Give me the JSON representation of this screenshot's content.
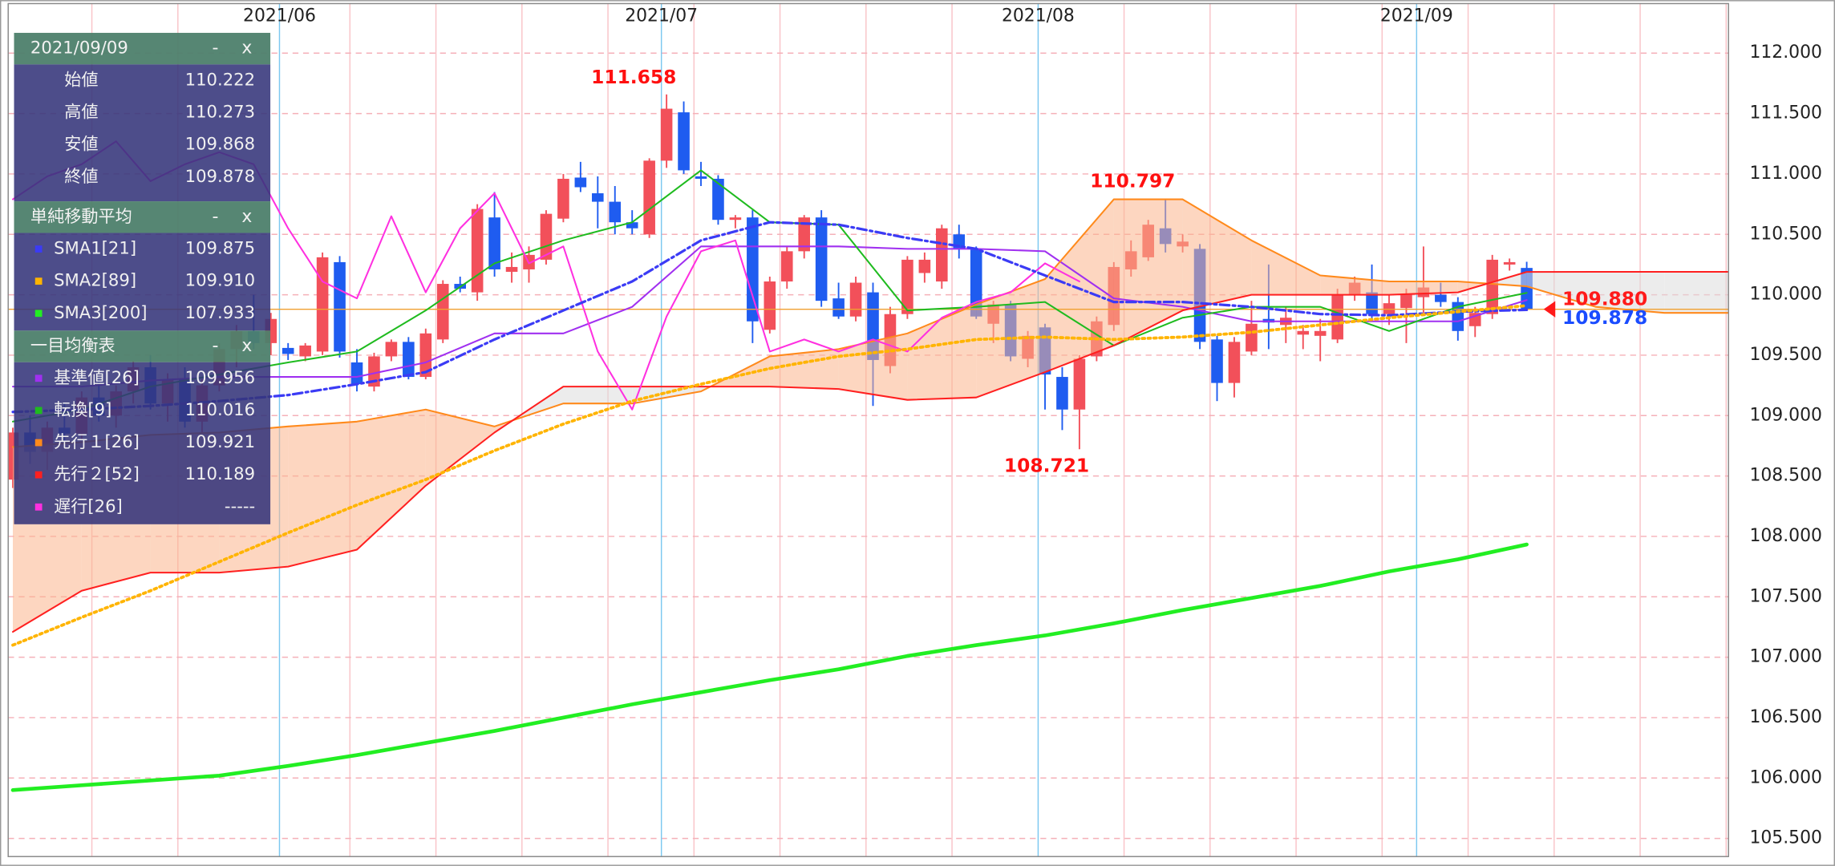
{
  "chart_data": {
    "type": "candlestick",
    "xlim": [
      -0.27,
      99.73
    ],
    "xticks": [
      {
        "value": 15.5,
        "label": "2021/06"
      },
      {
        "value": 37.7,
        "label": "2021/07"
      },
      {
        "value": 59.6,
        "label": "2021/08"
      },
      {
        "value": 81.6,
        "label": "2021/09"
      }
    ],
    "ylim": [
      105.35,
      112.41
    ],
    "yticks": [
      {
        "value": 105.5,
        "label": "105.500"
      },
      {
        "value": 106,
        "label": "106.000"
      },
      {
        "value": 106.5,
        "label": "106.500"
      },
      {
        "value": 107,
        "label": "107.000"
      },
      {
        "value": 107.5,
        "label": "107.500"
      },
      {
        "value": 108,
        "label": "108.000"
      },
      {
        "value": 108.5,
        "label": "108.500"
      },
      {
        "value": 109,
        "label": "109.000"
      },
      {
        "value": 109.5,
        "label": "109.500"
      },
      {
        "value": 110,
        "label": "110.000"
      },
      {
        "value": 110.5,
        "label": "110.500"
      },
      {
        "value": 111,
        "label": "111.000"
      },
      {
        "value": 111.5,
        "label": "111.500"
      },
      {
        "value": 112,
        "label": "112.000"
      }
    ],
    "grid": true,
    "up_color": "#f2505a",
    "down_color": "#1f5cf0",
    "open": [
      108.47,
      108.86,
      108.7,
      108.9,
      108.85,
      109.15,
      109.0,
      109.2,
      109.4,
      109.1,
      109.3,
      108.95,
      109.25,
      109.55,
      109.7,
      109.6,
      109.56,
      109.49,
      109.53,
      110.27,
      109.44,
      109.24,
      109.49,
      109.61,
      109.32,
      109.63,
      110.09,
      110.02,
      110.64,
      110.19,
      110.21,
      110.29,
      110.63,
      110.97,
      110.84,
      110.77,
      110.6,
      110.5,
      111.11,
      111.51,
      110.98,
      110.96,
      110.62,
      110.64,
      109.71,
      110.11,
      110.36,
      110.64,
      109.97,
      109.82,
      110.02,
      109.41,
      109.84,
      110.18,
      110.11,
      110.5,
      110.38,
      109.76,
      109.92,
      109.47,
      109.73,
      109.32,
      109.05,
      109.49,
      109.75,
      110.21,
      110.31,
      110.55,
      110.4,
      110.38,
      109.63,
      109.27,
      109.53,
      109.8,
      109.75,
      109.67,
      109.66,
      109.63,
      110.0,
      110.02,
      109.84,
      109.89,
      109.98,
      110.0,
      109.94,
      109.74,
      109.84,
      110.25,
      110.222
    ],
    "high": [
      108.9,
      109.0,
      108.95,
      109.1,
      109.2,
      109.3,
      109.25,
      109.45,
      109.5,
      109.35,
      109.4,
      109.3,
      109.6,
      109.75,
      110.0,
      109.85,
      109.6,
      109.6,
      110.35,
      110.32,
      109.55,
      109.52,
      109.63,
      109.65,
      109.72,
      110.12,
      110.15,
      110.75,
      110.85,
      110.35,
      110.4,
      110.7,
      111.0,
      111.1,
      110.98,
      110.9,
      110.7,
      111.13,
      111.658,
      111.6,
      111.1,
      110.99,
      110.66,
      110.7,
      110.15,
      110.4,
      110.66,
      110.7,
      110.1,
      110.15,
      110.1,
      109.9,
      110.32,
      110.35,
      110.58,
      110.58,
      110.4,
      109.95,
      109.95,
      109.7,
      109.76,
      109.4,
      109.5,
      109.82,
      110.27,
      110.45,
      110.62,
      110.797,
      110.5,
      110.42,
      109.66,
      109.65,
      109.95,
      110.25,
      109.9,
      109.75,
      109.8,
      110.05,
      110.15,
      110.25,
      110.0,
      110.05,
      110.4,
      110.1,
      109.98,
      109.9,
      110.33,
      110.3,
      110.273
    ],
    "low": [
      108.4,
      108.6,
      108.55,
      108.75,
      108.8,
      108.95,
      108.9,
      109.1,
      109.05,
      108.95,
      108.9,
      108.85,
      109.2,
      109.4,
      109.55,
      109.5,
      109.46,
      109.45,
      109.5,
      109.48,
      109.2,
      109.2,
      109.45,
      109.3,
      109.3,
      109.6,
      110.02,
      109.95,
      110.15,
      110.1,
      110.1,
      110.25,
      110.6,
      110.85,
      110.55,
      110.5,
      110.5,
      110.47,
      111.05,
      111.0,
      110.9,
      110.58,
      110.55,
      109.6,
      109.68,
      110.05,
      110.3,
      109.9,
      109.8,
      109.78,
      109.08,
      109.35,
      109.8,
      110.1,
      110.05,
      110.3,
      109.8,
      109.6,
      109.45,
      109.4,
      109.05,
      108.88,
      108.721,
      109.45,
      109.7,
      110.15,
      110.28,
      110.35,
      110.35,
      109.55,
      109.12,
      109.15,
      109.5,
      109.55,
      109.6,
      109.55,
      109.45,
      109.6,
      109.95,
      109.8,
      109.75,
      109.6,
      109.85,
      109.9,
      109.62,
      109.65,
      109.8,
      110.2,
      109.868
    ],
    "close": [
      108.86,
      108.7,
      108.9,
      108.85,
      109.15,
      109.0,
      109.2,
      109.4,
      109.1,
      109.3,
      108.95,
      109.25,
      109.55,
      109.7,
      109.6,
      109.8,
      109.51,
      109.58,
      110.31,
      109.53,
      109.26,
      109.49,
      109.61,
      109.32,
      109.68,
      110.09,
      110.05,
      110.71,
      110.21,
      110.23,
      110.33,
      110.67,
      110.96,
      110.89,
      110.77,
      110.6,
      110.55,
      111.11,
      111.54,
      111.03,
      110.96,
      110.62,
      110.64,
      109.78,
      110.11,
      110.36,
      110.64,
      109.95,
      109.82,
      110.1,
      109.46,
      109.84,
      110.29,
      110.29,
      110.55,
      110.38,
      109.82,
      109.92,
      109.49,
      109.66,
      109.34,
      109.05,
      109.47,
      109.78,
      110.23,
      110.36,
      110.58,
      110.42,
      110.44,
      109.61,
      109.27,
      109.61,
      109.76,
      109.77,
      109.81,
      109.7,
      109.7,
      110.0,
      110.1,
      109.84,
      109.93,
      110.0,
      110.06,
      109.94,
      109.7,
      109.85,
      110.29,
      110.27,
      109.878
    ],
    "annotations": [
      {
        "x": 38,
        "value": 111.658
      },
      {
        "x": 67,
        "value": 110.797
      },
      {
        "x": 62,
        "value": 108.721
      }
    ],
    "annotation_color": "#ff1010",
    "sma": [
      {
        "name": "SMA1[21]",
        "color": "#3b3bf5",
        "line_style": "dashdot",
        "width": 2.2,
        "last": "109.875",
        "x": [
          0,
          4,
          8,
          12,
          16,
          20,
          24,
          28,
          32,
          36,
          40,
          44,
          48,
          52,
          56,
          60,
          64,
          68,
          72,
          76,
          80,
          84,
          88
        ],
        "values": [
          109.03,
          109.05,
          109.08,
          109.12,
          109.17,
          109.26,
          109.36,
          109.63,
          109.87,
          110.11,
          110.45,
          110.6,
          110.58,
          110.47,
          110.38,
          110.16,
          109.94,
          109.94,
          109.9,
          109.84,
          109.83,
          109.86,
          109.875
        ]
      },
      {
        "name": "SMA2[89]",
        "color": "#ffb400",
        "line_style": "dotted",
        "width": 2.6,
        "last": "109.910",
        "x": [
          0,
          4,
          8,
          12,
          16,
          20,
          24,
          28,
          32,
          36,
          40,
          44,
          48,
          52,
          56,
          60,
          64,
          68,
          72,
          76,
          80,
          84,
          88
        ],
        "values": [
          107.1,
          107.33,
          107.55,
          107.79,
          108.03,
          108.26,
          108.47,
          108.71,
          108.93,
          109.12,
          109.26,
          109.39,
          109.49,
          109.55,
          109.63,
          109.65,
          109.63,
          109.65,
          109.69,
          109.75,
          109.81,
          109.86,
          109.91
        ]
      },
      {
        "name": "SMA3[200]",
        "color": "#22ee22",
        "line_style": "solid",
        "width": 3.2,
        "last": "107.933",
        "x": [
          0,
          4,
          8,
          12,
          16,
          20,
          24,
          28,
          32,
          36,
          40,
          44,
          48,
          52,
          56,
          60,
          64,
          68,
          72,
          76,
          80,
          84,
          88
        ],
        "values": [
          105.9,
          105.94,
          105.98,
          106.02,
          106.1,
          106.19,
          106.29,
          106.39,
          106.5,
          106.61,
          106.71,
          106.81,
          106.9,
          107.01,
          107.1,
          107.18,
          107.28,
          107.39,
          107.49,
          107.59,
          107.71,
          107.81,
          107.933
        ]
      }
    ],
    "ichimoku": [
      {
        "name": "基準値[26]",
        "color": "#a030f0",
        "line_style": "solid",
        "width": 1.4,
        "last": "109.956",
        "x": [
          0,
          4,
          8,
          12,
          16,
          20,
          24,
          28,
          32,
          36,
          40,
          44,
          48,
          52,
          56,
          60,
          64,
          68,
          72,
          76,
          80,
          84,
          88
        ],
        "values": [
          109.24,
          109.24,
          109.29,
          109.32,
          109.32,
          109.32,
          109.44,
          109.68,
          109.68,
          109.9,
          110.4,
          110.4,
          110.4,
          110.38,
          110.38,
          110.36,
          109.97,
          109.9,
          109.78,
          109.78,
          109.78,
          109.78,
          109.956
        ]
      },
      {
        "name": "転換[9]",
        "color": "#1fbb1f",
        "line_style": "solid",
        "width": 1.4,
        "last": "110.016",
        "x": [
          0,
          4,
          8,
          12,
          16,
          20,
          24,
          28,
          32,
          36,
          40,
          44,
          48,
          52,
          56,
          60,
          64,
          68,
          72,
          76,
          80,
          84,
          88
        ],
        "values": [
          108.95,
          109.05,
          109.24,
          109.34,
          109.44,
          109.53,
          109.87,
          110.26,
          110.45,
          110.6,
          111.03,
          110.6,
          110.58,
          109.87,
          109.9,
          109.94,
          109.58,
          109.81,
          109.9,
          109.9,
          109.7,
          109.9,
          110.016
        ]
      },
      {
        "name": "先行１[26]",
        "color": "#ff8a1c",
        "line_style": "solid",
        "width": 1.4,
        "last": "109.921",
        "x": [
          0,
          4,
          8,
          12,
          16,
          20,
          24,
          28,
          32,
          36,
          40,
          44,
          48,
          52,
          56,
          60,
          64,
          68,
          72,
          76,
          80,
          84,
          88,
          92,
          96,
          100
        ],
        "values": [
          108.74,
          108.78,
          108.84,
          108.86,
          108.91,
          108.95,
          109.05,
          108.91,
          109.1,
          109.1,
          109.2,
          109.49,
          109.55,
          109.68,
          109.92,
          110.13,
          110.79,
          110.79,
          110.45,
          110.16,
          110.11,
          110.11,
          110.07,
          109.9,
          109.85,
          109.85
        ]
      },
      {
        "name": "先行２[52]",
        "color": "#ff2020",
        "line_style": "solid",
        "width": 1.4,
        "last": "110.189",
        "x": [
          0,
          4,
          8,
          12,
          16,
          20,
          24,
          28,
          32,
          36,
          40,
          44,
          48,
          52,
          56,
          60,
          64,
          68,
          72,
          76,
          80,
          84,
          88,
          92,
          96,
          100
        ],
        "values": [
          107.21,
          107.55,
          107.7,
          107.7,
          107.75,
          107.89,
          108.42,
          108.86,
          109.24,
          109.24,
          109.24,
          109.24,
          109.22,
          109.13,
          109.15,
          109.36,
          109.58,
          109.87,
          110.0,
          110.0,
          110.0,
          110.02,
          110.189,
          110.19,
          110.19,
          110.19
        ]
      },
      {
        "name": "遅行[26]",
        "color": "#ff30e0",
        "line_style": "solid",
        "width": 1.4,
        "last": "-----",
        "x": [
          0,
          2,
          4,
          6,
          8,
          10,
          12,
          14,
          16,
          18,
          20,
          22,
          24,
          26,
          28,
          30,
          32,
          34,
          36,
          38,
          40,
          42,
          44,
          46,
          48,
          50,
          52,
          54,
          56,
          58,
          60,
          62
        ],
        "values": [
          110.79,
          110.98,
          111.08,
          111.27,
          110.94,
          111.08,
          111.18,
          111.08,
          110.55,
          110.11,
          109.97,
          110.65,
          110.02,
          110.55,
          110.84,
          110.26,
          110.4,
          109.53,
          109.05,
          109.82,
          110.36,
          110.45,
          109.53,
          109.63,
          109.53,
          109.63,
          109.53,
          109.81,
          109.94,
          110.02,
          110.26,
          110.11
        ]
      }
    ],
    "cloud_colors": {
      "up": "#fcb48c",
      "down": "#dcdcdc"
    },
    "price_labels": [
      {
        "value": 109.88,
        "label": "109.880",
        "color": "#ff1a1a"
      },
      {
        "value": 109.878,
        "label": "109.878",
        "color": "#1a4cff"
      }
    ],
    "price_line_color": "#f0a030"
  },
  "info_panel": {
    "date": "2021/09/09",
    "controls": [
      "-",
      "x"
    ],
    "ohlc": [
      {
        "label": "始値",
        "value": "110.222"
      },
      {
        "label": "高値",
        "value": "110.273"
      },
      {
        "label": "安値",
        "value": "109.868"
      },
      {
        "label": "終値",
        "value": "109.878"
      }
    ],
    "sma_title": "単純移動平均",
    "ichimoku_title": "一目均衡表"
  }
}
